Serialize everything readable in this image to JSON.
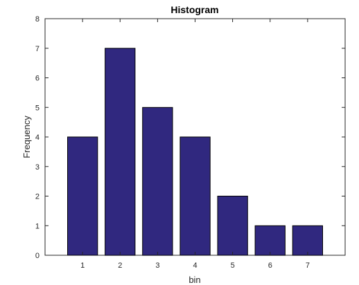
{
  "chart_data": {
    "type": "bar",
    "title": "Histogram",
    "xlabel": "bin",
    "ylabel": "Frequency",
    "categories": [
      "1",
      "2",
      "3",
      "4",
      "5",
      "6",
      "7"
    ],
    "values": [
      4,
      7,
      5,
      4,
      2,
      1,
      1
    ],
    "xlim": [
      0,
      8
    ],
    "ylim": [
      0,
      8
    ],
    "yticks": [
      "0",
      "1",
      "2",
      "3",
      "4",
      "5",
      "6",
      "7",
      "8"
    ],
    "grid": false,
    "bar_color": "#30287F",
    "axes_color": "#262626"
  }
}
